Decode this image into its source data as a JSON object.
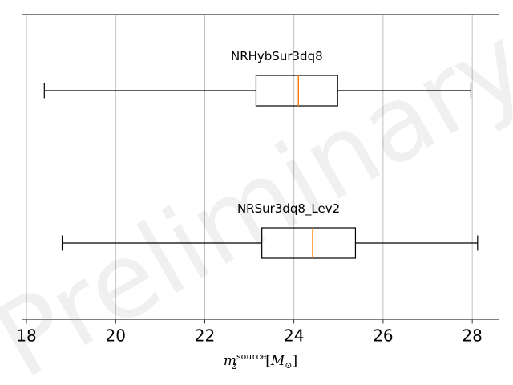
{
  "chart_data": {
    "type": "boxplot",
    "orientation": "horizontal",
    "xlim": [
      17.9,
      28.6
    ],
    "xticks": [
      18,
      20,
      22,
      24,
      26,
      28
    ],
    "grid": "vertical",
    "xlabel": {
      "base": "m",
      "sub": "2",
      "sup": "source",
      "bracket_open": "[",
      "unit_base": "M",
      "unit_sub": "⊙",
      "bracket_close": "]"
    },
    "watermark": "Preliminary",
    "colors": {
      "median": "#ff7f0e",
      "box": "#000000",
      "grid": "#b0b0b0"
    },
    "series": [
      {
        "name": "NRHybSur3dq8",
        "whisker_low": 18.4,
        "q1": 23.15,
        "median": 24.1,
        "q3": 24.98,
        "whisker_high": 27.97
      },
      {
        "name": "NRSur3dq8_Lev2",
        "whisker_low": 18.8,
        "q1": 23.28,
        "median": 24.42,
        "q3": 25.38,
        "whisker_high": 28.12
      }
    ]
  }
}
